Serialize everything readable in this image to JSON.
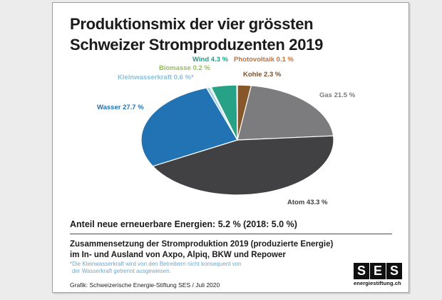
{
  "page": {
    "background_color": "#ececec",
    "card_border_color": "#9c9c9c"
  },
  "header": {
    "title_line1": "Produktionsmix der vier grössten",
    "title_line2": "Schweizer Stromproduzenten 2019"
  },
  "chart_data": {
    "type": "pie",
    "title": "Produktionsmix der vier grössten Schweizer Stromproduzenten 2019",
    "unit": "%",
    "start_angle_deg": 0,
    "direction": "clockwise",
    "slices": [
      {
        "key": "kohle",
        "label": "Kohle",
        "value": 2.3,
        "suffix": "",
        "color": "#85572a",
        "label_color": "#77512e"
      },
      {
        "key": "gas",
        "label": "Gas",
        "value": 21.5,
        "suffix": "",
        "color": "#7c7c7e",
        "label_color": "#7c7c7e"
      },
      {
        "key": "atom",
        "label": "Atom",
        "value": 43.3,
        "suffix": "",
        "color": "#414144",
        "label_color": "#3f3f42"
      },
      {
        "key": "wasser",
        "label": "Wasser",
        "value": 27.7,
        "suffix": "",
        "color": "#2173b4",
        "label_color": "#2173b4"
      },
      {
        "key": "kleinwasserkraft",
        "label": "Kleinwasserkraft",
        "value": 0.6,
        "suffix": "*",
        "color": "#a7d3e4",
        "label_color": "#8cc0da"
      },
      {
        "key": "biomasse",
        "label": "Biomasse",
        "value": 0.2,
        "suffix": "",
        "color": "#8fc163",
        "label_color": "#94be58"
      },
      {
        "key": "wind",
        "label": "Wind",
        "value": 4.3,
        "suffix": "",
        "color": "#28a287",
        "label_color": "#1ea184"
      },
      {
        "key": "photovoltaik",
        "label": "Photovoltaik",
        "value": 0.1,
        "suffix": "",
        "color": "#c4763a",
        "label_color": "#c0713a"
      }
    ],
    "annotations": {
      "summary": "Anteil neue erneuerbare Energien: 5.2 % (2018: 5.0 %)",
      "footnote": "*Die Kleinwasserkraft wird von den Betreibern nicht konsequent von der Wasserkraft getrennt ausgewiesen."
    }
  },
  "summary": {
    "label": "Anteil neue erneuerbare Energien:",
    "value": "5.2 % (2018: 5.0 %)"
  },
  "footer": {
    "description_line1": "Zusammensetzung der Stromproduktion 2019 (produzierte Energie)",
    "description_line2": "im In- und Ausland von Axpo, Alpiq, BKW und Repower",
    "footnote_line1": "*Die Kleinwasserkraft wird von den Betreibern nicht konsequent von",
    "footnote_line2": "der Wasserkraft getrennt ausgewiesen.",
    "footnote_color": "#6fa8c9",
    "credit": "Grafik: Schweizerische Energie-Stiftung SES / Juli 2020"
  },
  "logo": {
    "letter1": "S",
    "letter2": "E",
    "letter3": "S",
    "domain": "energiestiftung.ch"
  }
}
